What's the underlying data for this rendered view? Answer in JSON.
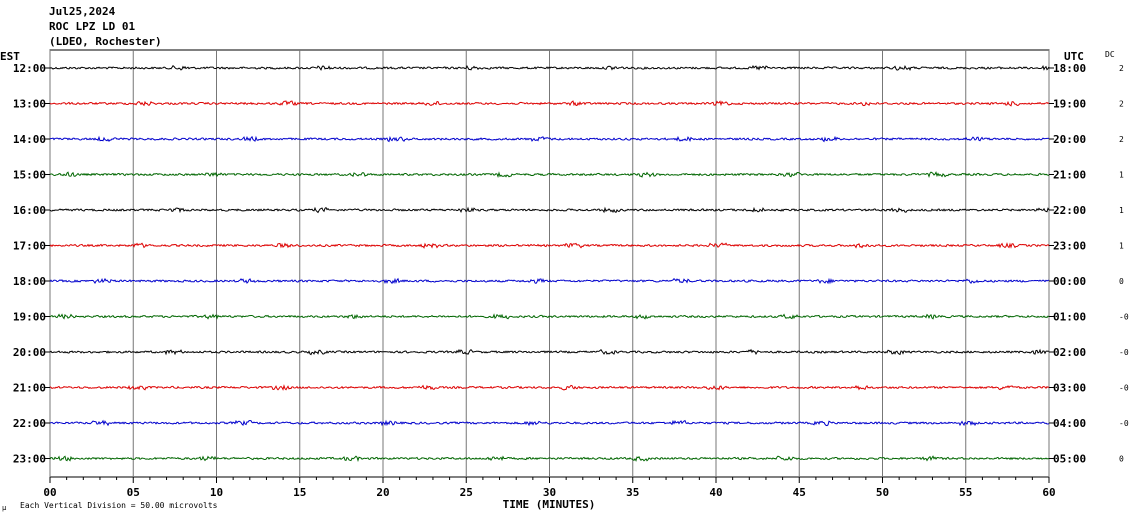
{
  "header": {
    "date": "Jul25,2024",
    "station": "ROC LPZ LD 01",
    "network": "(LDEO, Rochester)"
  },
  "left_zone": "EST",
  "right_zone": "UTC",
  "dc_label": "DC",
  "footer": {
    "scale_note": "Each Vertical Division =   50.00 microvolts",
    "corner_mark": "μ"
  },
  "chart_data": {
    "type": "line",
    "xlabel": "TIME (MINUTES)",
    "xlim": [
      0,
      60
    ],
    "x_ticks": [
      0,
      5,
      10,
      15,
      20,
      25,
      30,
      35,
      40,
      45,
      50,
      55,
      60
    ],
    "x_tick_labels": [
      "00",
      "05",
      "10",
      "15",
      "20",
      "25",
      "30",
      "35",
      "40",
      "45",
      "50",
      "55",
      "60"
    ],
    "colors": [
      "#000000",
      "#dd0000",
      "#0000cc",
      "#006600"
    ],
    "rows": [
      {
        "est": "12:00",
        "utc": "18:00",
        "dc": "2"
      },
      {
        "est": "13:00",
        "utc": "19:00",
        "dc": "2"
      },
      {
        "est": "14:00",
        "utc": "20:00",
        "dc": "2"
      },
      {
        "est": "15:00",
        "utc": "21:00",
        "dc": "1"
      },
      {
        "est": "16:00",
        "utc": "22:00",
        "dc": "1"
      },
      {
        "est": "17:00",
        "utc": "23:00",
        "dc": "1"
      },
      {
        "est": "18:00",
        "utc": "00:00",
        "dc": "0"
      },
      {
        "est": "19:00",
        "utc": "01:00",
        "dc": "-0"
      },
      {
        "est": "20:00",
        "utc": "02:00",
        "dc": "-0"
      },
      {
        "est": "21:00",
        "utc": "03:00",
        "dc": "-0"
      },
      {
        "est": "22:00",
        "utc": "04:00",
        "dc": "-0"
      },
      {
        "est": "23:00",
        "utc": "05:00",
        "dc": "0"
      }
    ]
  }
}
